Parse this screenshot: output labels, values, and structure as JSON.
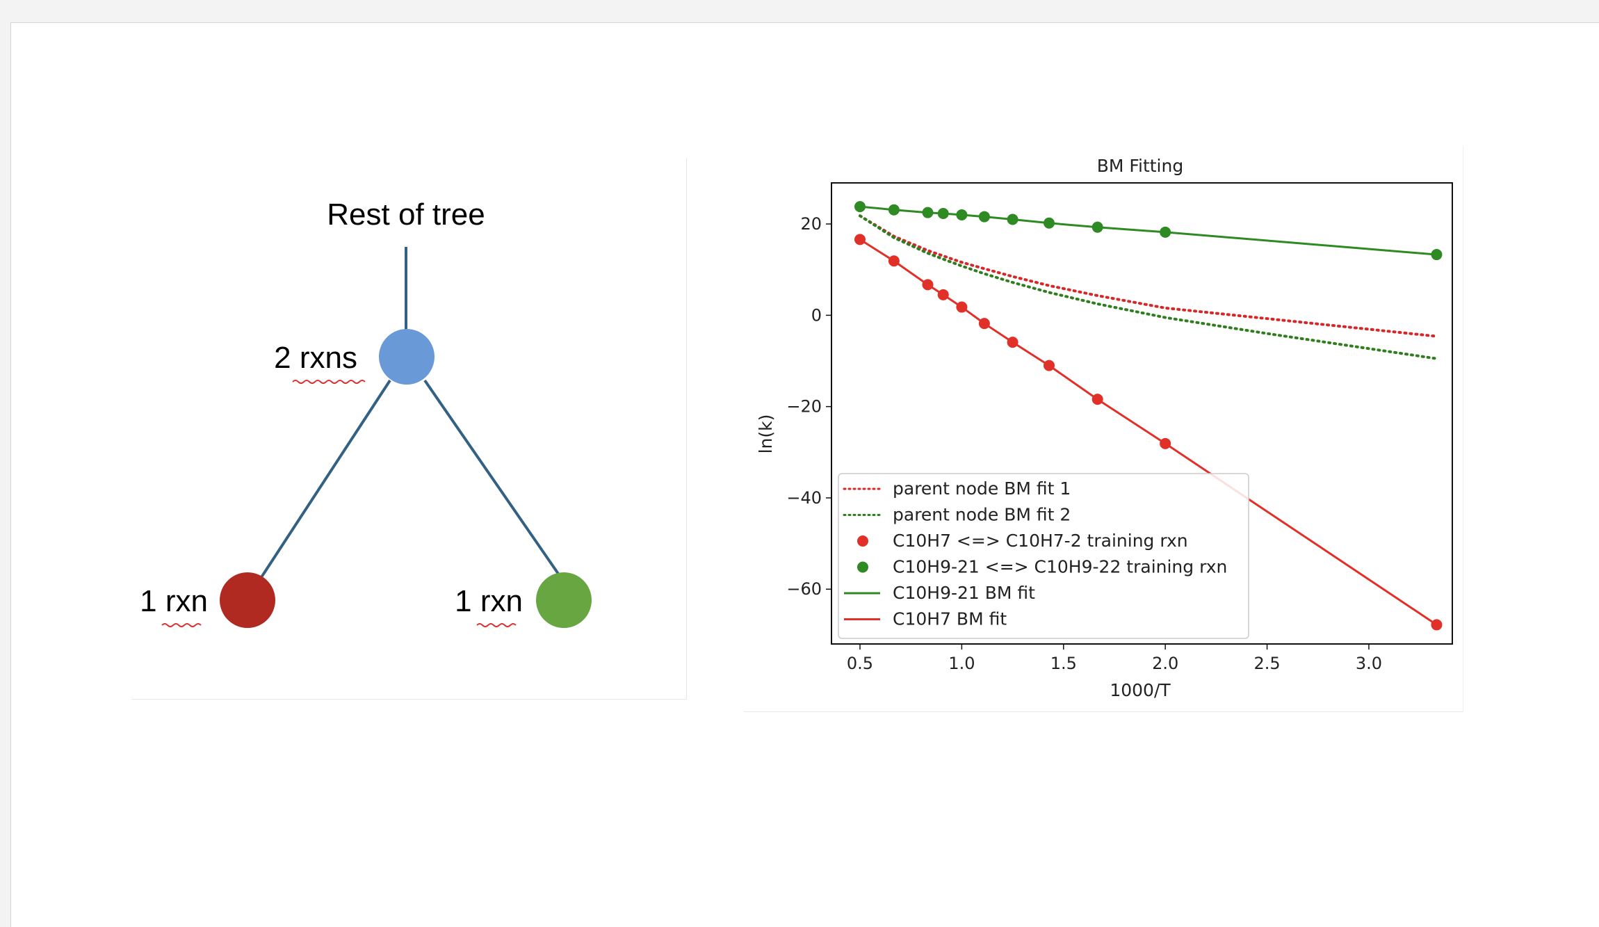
{
  "tree": {
    "root_label": "Rest of tree",
    "parent": {
      "label": "2 rxns",
      "color": "#6a99d8"
    },
    "left_child": {
      "label": "1 rxn",
      "color": "#b12a22"
    },
    "right_child": {
      "label": "1 rxn",
      "color": "#67a641"
    },
    "edge_color": "#336183"
  },
  "chart_data": {
    "type": "line",
    "title": "BM Fitting",
    "xlabel": "1000/T",
    "ylabel": "ln(k)",
    "xlim": [
      0.36,
      3.41
    ],
    "ylim": [
      -72,
      29
    ],
    "xticks": [
      0.5,
      1.0,
      1.5,
      2.0,
      2.5,
      3.0
    ],
    "xtick_labels": [
      "0.5",
      "1.0",
      "1.5",
      "2.0",
      "2.5",
      "3.0"
    ],
    "yticks": [
      20,
      0,
      -20,
      -40,
      -60
    ],
    "ytick_labels": [
      "20",
      "0",
      "−20",
      "−40",
      "−60"
    ],
    "grid": false,
    "legend_position": "lower-left",
    "series": [
      {
        "name": "parent node BM fit 1",
        "style": "dotted",
        "color": "#d62728",
        "marker": "none",
        "x": [
          0.5,
          0.667,
          0.833,
          0.909,
          1.0,
          1.111,
          1.25,
          1.429,
          1.667,
          2.0,
          3.333
        ],
        "y": [
          21.8,
          17.3,
          14.2,
          13.0,
          11.6,
          10.2,
          8.5,
          6.5,
          4.3,
          1.6,
          -4.6
        ]
      },
      {
        "name": "parent node BM fit 2",
        "style": "dotted",
        "color": "#2e7d1e",
        "marker": "none",
        "x": [
          0.5,
          0.667,
          0.833,
          0.909,
          1.0,
          1.111,
          1.25,
          1.429,
          1.667,
          2.0,
          2.5,
          3.333
        ],
        "y": [
          21.8,
          17.0,
          13.6,
          12.3,
          10.8,
          9.1,
          7.2,
          5.0,
          2.5,
          -0.5,
          -4.0,
          -9.5
        ]
      },
      {
        "name": "C10H7 <=> C10H7-2 training rxn",
        "style": "none",
        "color": "#e03028",
        "marker": "circle",
        "x": [
          0.5,
          0.667,
          0.833,
          0.909,
          1.0,
          1.111,
          1.25,
          1.429,
          1.667,
          2.0,
          3.333
        ],
        "y": [
          16.6,
          11.9,
          6.7,
          4.5,
          1.8,
          -1.8,
          -5.9,
          -11.0,
          -18.4,
          -28.1,
          -67.8
        ]
      },
      {
        "name": "C10H9-21 <=> C10H9-22 training rxn",
        "style": "none",
        "color": "#2e8a22",
        "marker": "circle",
        "x": [
          0.5,
          0.667,
          0.833,
          0.909,
          1.0,
          1.111,
          1.25,
          1.429,
          1.667,
          2.0,
          3.333
        ],
        "y": [
          23.8,
          23.1,
          22.5,
          22.3,
          22.0,
          21.6,
          21.0,
          20.2,
          19.3,
          18.2,
          13.3
        ]
      },
      {
        "name": "C10H9-21 BM fit",
        "style": "solid",
        "color": "#2e8a22",
        "marker": "none",
        "x": [
          0.5,
          0.667,
          0.833,
          0.909,
          1.0,
          1.111,
          1.25,
          1.429,
          1.667,
          2.0,
          3.333
        ],
        "y": [
          23.8,
          23.1,
          22.5,
          22.3,
          22.0,
          21.6,
          21.0,
          20.2,
          19.3,
          18.2,
          13.3
        ]
      },
      {
        "name": "C10H7 BM fit",
        "style": "solid",
        "color": "#e03028",
        "marker": "none",
        "x": [
          0.5,
          0.667,
          0.833,
          0.909,
          1.0,
          1.111,
          1.25,
          1.429,
          1.667,
          2.0,
          3.333
        ],
        "y": [
          16.6,
          11.9,
          6.7,
          4.5,
          1.8,
          -1.8,
          -5.9,
          -11.0,
          -18.4,
          -28.1,
          -67.8
        ]
      }
    ]
  }
}
